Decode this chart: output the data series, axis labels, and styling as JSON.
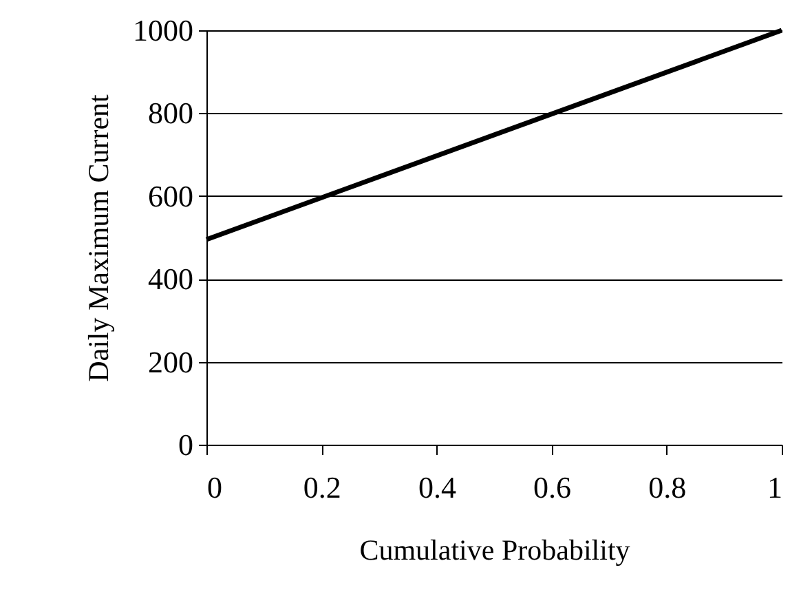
{
  "chart_data": {
    "type": "line",
    "xlabel": "Cumulative Probability",
    "ylabel": "Daily Maximum Current",
    "x": [
      0,
      1
    ],
    "series": [
      {
        "color": "#000000",
        "values": [
          495,
          1000
        ]
      }
    ],
    "xlim": [
      0,
      1
    ],
    "xticks": [
      0,
      0.2,
      0.4,
      0.6,
      0.8,
      1
    ],
    "ylim": [
      0,
      1000
    ],
    "yticks": [
      0,
      200,
      400,
      600,
      800,
      1000
    ],
    "grid": "y",
    "legend": false,
    "marker": "none",
    "line_style": "solid"
  }
}
